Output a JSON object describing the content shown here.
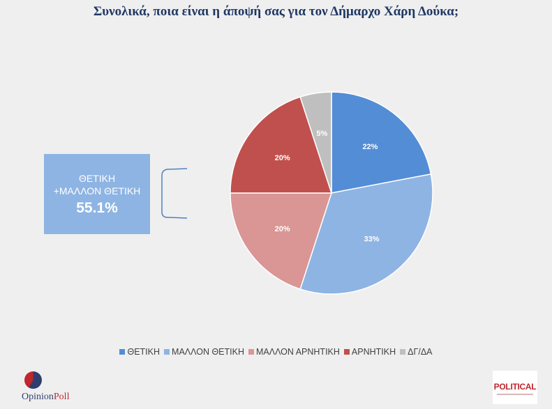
{
  "title": "Συνολικά, ποια είναι η άποψή σας για τον Δήμαρχο Χάρη Δούκα;",
  "callout": {
    "line1": "ΘΕΤΙΚΗ",
    "line2": "+ΜΑΛΛΟΝ ΘΕΤΙΚΗ",
    "value": "55.1%"
  },
  "chart_data": {
    "type": "pie",
    "categories": [
      "ΘΕΤΙΚΗ",
      "ΜΑΛΛΟΝ ΘΕΤΙΚΗ",
      "ΜΑΛΛΟΝ ΑΡΝΗΤΙΚΗ",
      "ΑΡΝΗΤΙΚΗ",
      "ΔΓ/ΔΑ"
    ],
    "values": [
      22,
      33,
      20,
      20,
      5
    ],
    "labels": [
      "22%",
      "33%",
      "20%",
      "20%",
      "5%"
    ],
    "colors": [
      "#538dd5",
      "#8eb4e3",
      "#d99694",
      "#c0504d",
      "#bfbfbf"
    ],
    "legend_position": "bottom"
  },
  "logos": {
    "left_part1": "Opinion",
    "left_part2": "Poll",
    "right": "POLITICAL"
  }
}
